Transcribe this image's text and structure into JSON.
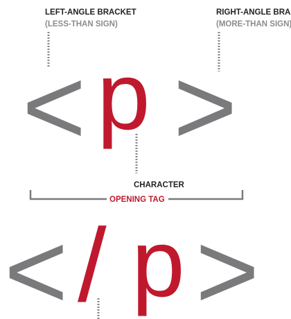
{
  "colors": {
    "gray": "#7a7a7c",
    "red": "#c0192e",
    "dark": "#222222",
    "dotted": "#8a8a8c",
    "subtitle": "#8c8c8e"
  },
  "labels": {
    "left_title": "LEFT-ANGLE BRACKET",
    "left_sub": "(LESS-THAN SIGN)",
    "right_title": "RIGHT-ANGLE BRACKET",
    "right_sub": "(MORE-THAN SIGN)",
    "character": "CHARACTER",
    "opening_tag": "OPENING TAG"
  },
  "opening_tag": {
    "left_bracket": "<",
    "character": "p",
    "right_bracket": ">"
  },
  "closing_tag": {
    "left_bracket": "<",
    "slash": "/",
    "character": "p",
    "right_bracket": ">"
  }
}
